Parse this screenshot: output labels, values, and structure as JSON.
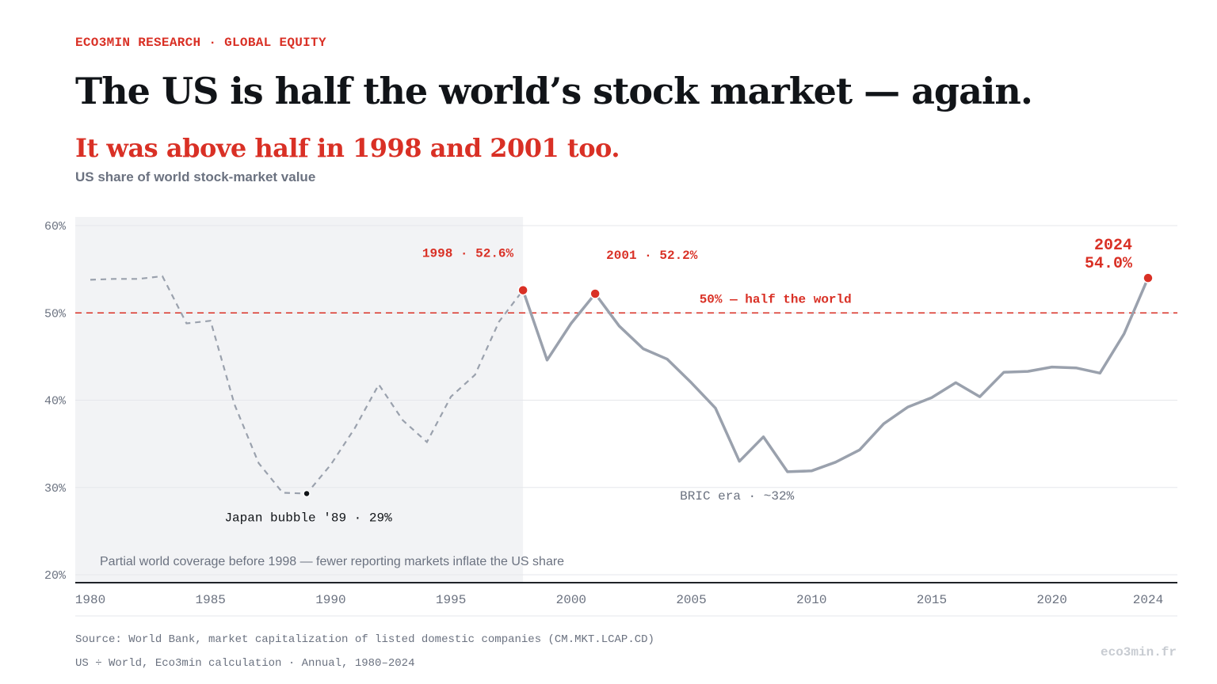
{
  "header": {
    "kicker": "ECO3MIN RESEARCH · GLOBAL EQUITY",
    "title": "The US is half the world’s stock market — again.",
    "subtitle": "It was above half in 1998 and 2001 too.",
    "caption": "US share of world stock-market value"
  },
  "footer": {
    "source": "Source: World Bank, market capitalization of listed domestic companies (CM.MKT.LCAP.CD)",
    "method": "US ÷ World, Eco3min calculation · Annual, 1980–2024",
    "brand": "eco3min.fr"
  },
  "colors": {
    "accent": "#d93025",
    "line": "#9aa1ad",
    "shade": "#f2f3f5",
    "text": "#111418",
    "muted": "#6b7280"
  },
  "chart_data": {
    "type": "line",
    "title": "US share of world stock-market value",
    "ylim": [
      20,
      60
    ],
    "xlim": [
      1980,
      2024
    ],
    "y_ticks": [
      "60%",
      "50%",
      "40%",
      "30%",
      "20%"
    ],
    "y_tick_values": [
      60,
      50,
      40,
      30,
      20
    ],
    "x_ticks": [
      "1980",
      "1985",
      "1990",
      "1995",
      "2000",
      "2005",
      "2010",
      "2015",
      "2020",
      "2024"
    ],
    "x_tick_values": [
      1980,
      1985,
      1990,
      1995,
      2000,
      2005,
      2010,
      2015,
      2020,
      2024
    ],
    "grid": true,
    "x": [
      1980,
      1981,
      1982,
      1983,
      1984,
      1985,
      1986,
      1987,
      1988,
      1989,
      1990,
      1991,
      1992,
      1993,
      1994,
      1995,
      1996,
      1997,
      1998,
      1999,
      2000,
      2001,
      2002,
      2003,
      2004,
      2005,
      2006,
      2007,
      2008,
      2009,
      2010,
      2011,
      2012,
      2013,
      2014,
      2015,
      2016,
      2017,
      2018,
      2019,
      2020,
      2021,
      2022,
      2023,
      2024
    ],
    "values": [
      53.8,
      53.9,
      53.9,
      54.2,
      48.8,
      49.1,
      39.5,
      32.8,
      29.4,
      29.3,
      32.6,
      36.8,
      41.8,
      37.7,
      35.2,
      40.4,
      42.9,
      49.0,
      52.6,
      44.6,
      48.8,
      52.2,
      48.5,
      45.9,
      44.7,
      42.0,
      39.1,
      33.0,
      35.8,
      31.8,
      31.9,
      32.9,
      34.3,
      37.3,
      39.2,
      40.3,
      42.0,
      40.4,
      43.2,
      43.3,
      43.8,
      43.7,
      43.1,
      47.6,
      54.0
    ],
    "partial_coverage_until": 1998,
    "reference_line": {
      "value": 50,
      "label": "50% — half the world"
    },
    "shade_note": "Partial world coverage before 1998 — fewer reporting markets inflate the US share",
    "annotations": {
      "y1998": {
        "x": 1998,
        "y": 52.6,
        "label": "1998 · 52.6%"
      },
      "y2001": {
        "x": 2001,
        "y": 52.2,
        "label": "2001 · 52.2%"
      },
      "y2024": {
        "x": 2024,
        "y": 54.0,
        "label_year": "2024",
        "label_value": "54.0%"
      },
      "japan": {
        "x": 1989,
        "y": 29.3,
        "label": "Japan bubble '89 · 29%"
      },
      "bric": {
        "label": "BRIC era · ~32%"
      }
    }
  }
}
